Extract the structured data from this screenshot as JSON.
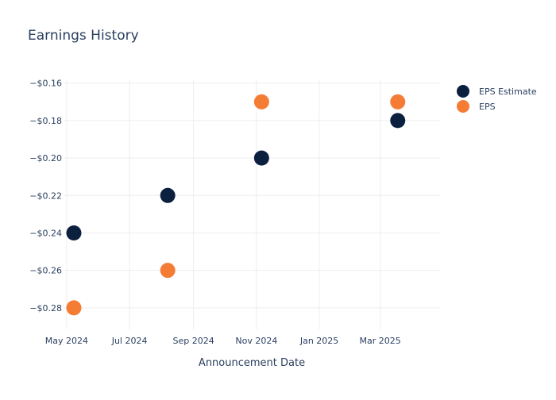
{
  "chart_data": {
    "type": "scatter",
    "title": "Earnings History",
    "xlabel": "Announcement Date",
    "ylabel": "",
    "x_ticks": [
      {
        "date": "2024-05-01",
        "label": "May 2024"
      },
      {
        "date": "2024-07-01",
        "label": "Jul 2024"
      },
      {
        "date": "2024-09-01",
        "label": "Sep 2024"
      },
      {
        "date": "2024-11-01",
        "label": "Nov 2024"
      },
      {
        "date": "2025-01-01",
        "label": "Jan 2025"
      },
      {
        "date": "2025-03-01",
        "label": "Mar 2025"
      }
    ],
    "y_ticks": [
      {
        "value": -0.16,
        "label": "−$0.16"
      },
      {
        "value": -0.18,
        "label": "−$0.18"
      },
      {
        "value": -0.2,
        "label": "−$0.20"
      },
      {
        "value": -0.22,
        "label": "−$0.22"
      },
      {
        "value": -0.24,
        "label": "−$0.24"
      },
      {
        "value": -0.26,
        "label": "−$0.26"
      },
      {
        "value": -0.28,
        "label": "−$0.28"
      }
    ],
    "xlim": [
      "2024-04-28",
      "2025-04-28"
    ],
    "ylim": [
      -0.2915,
      -0.158
    ],
    "grid": true,
    "legend_position": "top-right",
    "series": [
      {
        "name": "EPS Estimate",
        "color": "#0b1f3f",
        "points": [
          {
            "x": "2024-05-08",
            "y": -0.24
          },
          {
            "x": "2024-08-07",
            "y": -0.22
          },
          {
            "x": "2024-11-06",
            "y": -0.2
          },
          {
            "x": "2025-03-18",
            "y": -0.18
          }
        ]
      },
      {
        "name": "EPS",
        "color": "#f47c35",
        "points": [
          {
            "x": "2024-05-08",
            "y": -0.28
          },
          {
            "x": "2024-08-07",
            "y": -0.26
          },
          {
            "x": "2024-11-06",
            "y": -0.17
          },
          {
            "x": "2025-03-18",
            "y": -0.17
          }
        ]
      }
    ]
  }
}
